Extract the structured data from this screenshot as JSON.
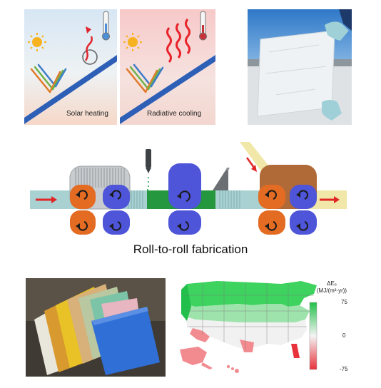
{
  "panels": {
    "solar_heating_label": "Solar heating",
    "radiative_cooling_label": "Radiative cooling"
  },
  "fabrication": {
    "label": "Roll-to-roll fabrication"
  },
  "map": {
    "legend_title_line1": "ΔEₑ",
    "legend_title_line2": "(MJ/(m²·yr))",
    "legend_ticks": [
      "75",
      "0",
      "-75"
    ],
    "colors": {
      "positive": "#22c04a",
      "neutral": "#f4f4f4",
      "negative": "#e8323c"
    }
  },
  "icons": [
    "sun-icon",
    "thermometer-icon",
    "sample-photo",
    "film-samples-photo",
    "us-map"
  ]
}
